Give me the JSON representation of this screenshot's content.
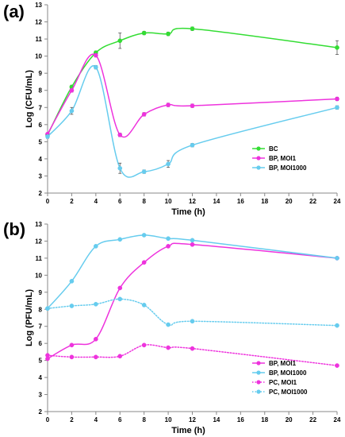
{
  "chart_data": [
    {
      "panel": "(a)",
      "type": "line",
      "xlabel": "Time (h)",
      "ylabel": "Log (CFU/mL)",
      "xlim": [
        0,
        24
      ],
      "ylim": [
        2,
        13
      ],
      "xticks": [
        0,
        2,
        4,
        6,
        8,
        10,
        12,
        14,
        16,
        18,
        20,
        22,
        24
      ],
      "yticks": [
        2,
        3,
        4,
        5,
        6,
        7,
        8,
        9,
        10,
        11,
        12,
        13
      ],
      "legend_position": "bottom-right",
      "series": [
        {
          "name": "BC",
          "color": "#33dd33",
          "style": "solid",
          "x": [
            0,
            2,
            4,
            6,
            8,
            10,
            12,
            24
          ],
          "y": [
            5.4,
            8.2,
            10.2,
            10.9,
            11.35,
            11.3,
            11.6,
            10.5
          ],
          "err": [
            0,
            0.1,
            0.1,
            0.45,
            0.1,
            0.1,
            0.1,
            0.4
          ]
        },
        {
          "name": "BP, MOI1",
          "color": "#ee33dd",
          "style": "solid",
          "x": [
            0,
            2,
            4,
            6,
            8,
            10,
            12,
            24
          ],
          "y": [
            5.45,
            8.0,
            10.05,
            5.4,
            6.6,
            7.15,
            7.1,
            7.5
          ],
          "err": [
            0,
            0.1,
            0.1,
            0.1,
            0.1,
            0.1,
            0.1,
            0.1
          ]
        },
        {
          "name": "BP, MOI1000",
          "color": "#66ccee",
          "style": "solid",
          "x": [
            0,
            2,
            4,
            6,
            8,
            10,
            12,
            24
          ],
          "y": [
            5.3,
            6.8,
            9.35,
            3.45,
            3.25,
            3.7,
            4.8,
            7.0
          ],
          "err": [
            0.1,
            0.2,
            0.1,
            0.3,
            0.1,
            0.2,
            0.1,
            0.1
          ]
        }
      ]
    },
    {
      "panel": "(b)",
      "type": "line",
      "xlabel": "Time (h)",
      "ylabel": "Log (PFU/mL)",
      "xlim": [
        0,
        24
      ],
      "ylim": [
        2,
        13
      ],
      "xticks": [
        0,
        2,
        4,
        6,
        8,
        10,
        12,
        14,
        16,
        18,
        20,
        22,
        24
      ],
      "yticks": [
        2,
        3,
        4,
        5,
        6,
        7,
        8,
        9,
        10,
        11,
        12,
        13
      ],
      "legend_position": "bottom-right",
      "series": [
        {
          "name": "BP, MOI1",
          "color": "#ee33dd",
          "style": "solid",
          "x": [
            0,
            2,
            4,
            6,
            8,
            10,
            12,
            24
          ],
          "y": [
            5.1,
            5.9,
            6.25,
            9.25,
            10.75,
            11.7,
            11.8,
            11.0
          ],
          "err": [
            0,
            0,
            0,
            0,
            0,
            0,
            0,
            0
          ]
        },
        {
          "name": "BP, MOI1000",
          "color": "#66ccee",
          "style": "solid",
          "x": [
            0,
            2,
            4,
            6,
            8,
            10,
            12,
            24
          ],
          "y": [
            8.05,
            9.65,
            11.7,
            12.1,
            12.35,
            12.15,
            12.05,
            11.0
          ],
          "err": [
            0,
            0,
            0,
            0,
            0,
            0,
            0,
            0
          ]
        },
        {
          "name": "PC, MOI1",
          "color": "#ee33dd",
          "style": "dotted",
          "x": [
            0,
            2,
            4,
            6,
            8,
            10,
            12,
            24
          ],
          "y": [
            5.3,
            5.2,
            5.2,
            5.25,
            5.9,
            5.75,
            5.7,
            4.7
          ],
          "err": [
            0,
            0,
            0,
            0,
            0,
            0,
            0,
            0
          ]
        },
        {
          "name": "PC, MOI1000",
          "color": "#66ccee",
          "style": "dotted",
          "x": [
            0,
            2,
            4,
            6,
            8,
            10,
            12,
            24
          ],
          "y": [
            8.05,
            8.2,
            8.3,
            8.6,
            8.25,
            7.1,
            7.3,
            7.05
          ],
          "err": [
            0,
            0,
            0,
            0,
            0,
            0,
            0,
            0.05
          ]
        }
      ]
    }
  ]
}
